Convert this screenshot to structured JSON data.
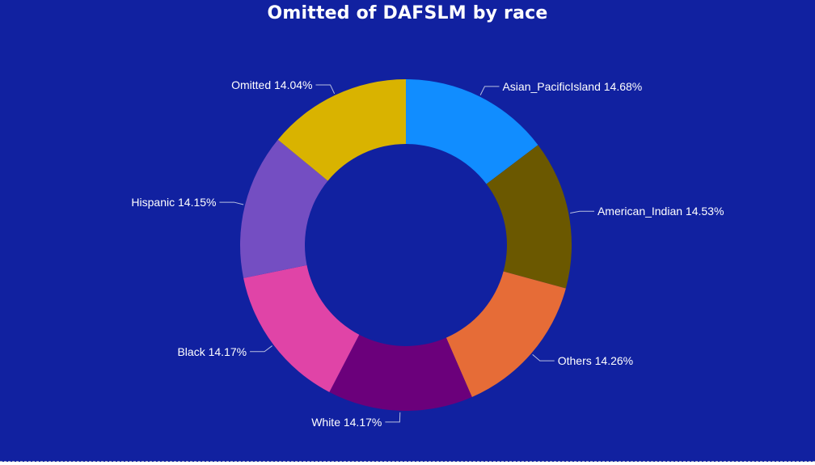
{
  "chart_data": {
    "type": "pie",
    "variant": "donut",
    "title": "Omitted of DAFSLM by race",
    "slices": [
      {
        "label": "Asian_PacificIsland",
        "value": 14.68,
        "display": "Asian_PacificIsland 14.68%",
        "color": "#118DFF"
      },
      {
        "label": "American_Indian",
        "value": 14.53,
        "display": "American_Indian 14.53%",
        "color": "#6B5800"
      },
      {
        "label": "Others",
        "value": 14.26,
        "display": "Others 14.26%",
        "color": "#E66C37"
      },
      {
        "label": "White",
        "value": 14.17,
        "display": "White 14.17%",
        "color": "#6B007B"
      },
      {
        "label": "Black",
        "value": 14.17,
        "display": "Black 14.17%",
        "color": "#E044A7"
      },
      {
        "label": "Hispanic",
        "value": 14.15,
        "display": "Hispanic 14.15%",
        "color": "#744EC2"
      },
      {
        "label": "Omitted",
        "value": 14.04,
        "display": "Omitted 14.04%",
        "color": "#D9B300"
      }
    ],
    "legend": "none",
    "background": "#1121A0"
  }
}
